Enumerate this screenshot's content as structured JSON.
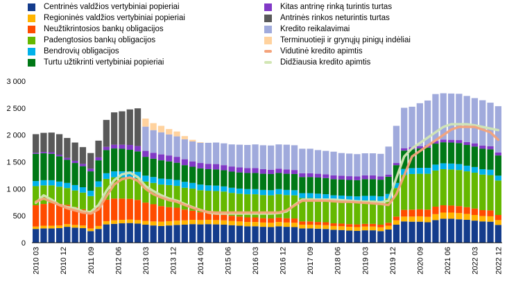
{
  "chart_data": {
    "type": "bar",
    "stacked": true,
    "ylim": [
      0,
      3000
    ],
    "yticks": [
      "0",
      "500",
      "1 000",
      "1 500",
      "2 000",
      "2 500",
      "3 000"
    ],
    "xtick_labels": [
      "2010 03",
      "2010 12",
      "2011 09",
      "2012 06",
      "2013 03",
      "2013 12",
      "2014 09",
      "2015 06",
      "2016 03",
      "2016 12",
      "2017 09",
      "2018 06",
      "2019 03",
      "2019 12",
      "2020 09",
      "2021 06",
      "2022 03",
      "2022 12"
    ],
    "legend_placement": "top",
    "grid": false,
    "series": [
      {
        "name": "Centrinės valdžios vertybiniai popieriai",
        "color": "#143c8c",
        "values": [
          255,
          265,
          265,
          270,
          295,
          280,
          270,
          215,
          255,
          340,
          350,
          360,
          365,
          355,
          335,
          320,
          310,
          320,
          330,
          335,
          345,
          340,
          345,
          340,
          335,
          325,
          315,
          305,
          305,
          295,
          290,
          305,
          295,
          290,
          265,
          265,
          260,
          255,
          240,
          235,
          225,
          220,
          230,
          230,
          215,
          245,
          335,
          395,
          390,
          390,
          380,
          420,
          445,
          445,
          435,
          425,
          410,
          395,
          390,
          330
        ]
      },
      {
        "name": "Regioninės valdžios vertybiniai popieriai",
        "color": "#ffb400",
        "values": [
          45,
          50,
          50,
          50,
          50,
          50,
          50,
          50,
          55,
          60,
          65,
          65,
          65,
          65,
          70,
          75,
          80,
          80,
          80,
          80,
          80,
          80,
          80,
          80,
          80,
          80,
          80,
          80,
          80,
          80,
          80,
          80,
          80,
          80,
          70,
          70,
          70,
          70,
          70,
          70,
          70,
          70,
          70,
          70,
          70,
          70,
          80,
          90,
          95,
          100,
          100,
          110,
          115,
          115,
          115,
          110,
          105,
          100,
          100,
          90
        ]
      },
      {
        "name": "Neužtikrintosios bankų obligacijos",
        "color": "#ff4b00",
        "values": [
          395,
          405,
          420,
          400,
          360,
          330,
          300,
          280,
          350,
          400,
          405,
          395,
          385,
          375,
          340,
          320,
          290,
          260,
          240,
          200,
          170,
          145,
          130,
          120,
          110,
          95,
          90,
          85,
          85,
          80,
          80,
          80,
          80,
          80,
          60,
          60,
          55,
          55,
          50,
          50,
          50,
          50,
          50,
          50,
          50,
          55,
          70,
          125,
          130,
          130,
          135,
          140,
          135,
          130,
          130,
          125,
          120,
          110,
          110,
          95
        ]
      },
      {
        "name": "Padengtosios bankų obligacijos",
        "color": "#65b800",
        "values": [
          355,
          345,
          330,
          320,
          310,
          310,
          310,
          320,
          375,
          385,
          395,
          395,
          400,
          405,
          390,
          395,
          400,
          410,
          405,
          405,
          410,
          410,
          410,
          420,
          425,
          425,
          425,
          430,
          430,
          430,
          430,
          435,
          430,
          430,
          435,
          435,
          435,
          435,
          435,
          435,
          435,
          435,
          435,
          435,
          440,
          450,
          530,
          650,
          660,
          660,
          665,
          670,
          670,
          670,
          670,
          665,
          665,
          660,
          655,
          640
        ]
      },
      {
        "name": "Bendrovių obligacijos",
        "color": "#00b1ea",
        "values": [
          95,
          95,
          95,
          95,
          95,
          100,
          100,
          100,
          105,
          105,
          110,
          110,
          110,
          115,
          110,
          110,
          110,
          110,
          110,
          110,
          105,
          105,
          100,
          100,
          95,
          95,
          95,
          95,
          95,
          95,
          95,
          95,
          95,
          95,
          90,
          90,
          90,
          85,
          85,
          85,
          85,
          85,
          85,
          85,
          85,
          85,
          95,
          110,
          110,
          110,
          110,
          110,
          110,
          110,
          110,
          105,
          105,
          100,
          100,
          90
        ]
      },
      {
        "name": "Turtu užtikrinti vertybiniai popieriai",
        "color": "#007816",
        "values": [
          505,
          500,
          490,
          470,
          430,
          410,
          390,
          360,
          390,
          430,
          425,
          420,
          400,
          380,
          350,
          340,
          340,
          330,
          320,
          310,
          300,
          300,
          300,
          300,
          300,
          300,
          300,
          300,
          300,
          300,
          300,
          300,
          300,
          300,
          300,
          300,
          300,
          300,
          300,
          300,
          300,
          300,
          310,
          310,
          310,
          320,
          330,
          340,
          350,
          360,
          375,
          390,
          390,
          390,
          390,
          385,
          380,
          380,
          380,
          375
        ]
      },
      {
        "name": "Kitas antrinę rinką turintis turtas",
        "color": "#8139c6",
        "values": [
          20,
          25,
          30,
          30,
          35,
          40,
          45,
          50,
          55,
          60,
          70,
          75,
          90,
          100,
          110,
          110,
          110,
          110,
          110,
          110,
          100,
          100,
          100,
          100,
          95,
          95,
          95,
          90,
          90,
          85,
          80,
          80,
          80,
          75,
          70,
          70,
          70,
          70,
          70,
          70,
          70,
          70,
          70,
          70,
          60,
          40,
          40,
          45,
          40,
          40,
          45,
          50,
          50,
          50,
          55,
          55,
          60,
          60,
          55,
          55
        ]
      },
      {
        "name": "Antrinės rinkos neturintis turtas",
        "color": "#595959",
        "values": [
          345,
          355,
          365,
          380,
          370,
          340,
          310,
          290,
          310,
          500,
          600,
          620,
          660,
          700,
          0,
          0,
          0,
          0,
          0,
          0,
          0,
          0,
          0,
          0,
          0,
          0,
          0,
          0,
          0,
          0,
          0,
          0,
          0,
          0,
          0,
          0,
          0,
          0,
          0,
          0,
          0,
          0,
          0,
          0,
          0,
          0,
          0,
          0,
          0,
          0,
          0,
          0,
          0,
          0,
          0,
          0,
          0,
          0,
          0,
          0
        ]
      },
      {
        "name": "Kredito reikalavimai",
        "color": "#a0aadc",
        "values": [
          0,
          0,
          0,
          0,
          0,
          0,
          0,
          0,
          0,
          0,
          0,
          0,
          0,
          0,
          450,
          420,
          410,
          390,
          380,
          370,
          370,
          375,
          390,
          400,
          405,
          410,
          420,
          430,
          440,
          445,
          450,
          450,
          460,
          460,
          455,
          455,
          440,
          435,
          440,
          420,
          420,
          415,
          410,
          410,
          420,
          520,
          690,
          750,
          750,
          800,
          830,
          870,
          860,
          860,
          860,
          855,
          840,
          840,
          810,
          860
        ]
      },
      {
        "name": "Terminuotieji ir grynųjų pinigų indėliai",
        "color": "#ffd29e",
        "values": [
          0,
          0,
          0,
          0,
          0,
          0,
          0,
          0,
          0,
          0,
          0,
          0,
          0,
          0,
          150,
          130,
          120,
          100,
          90,
          60,
          30,
          10,
          0,
          0,
          0,
          0,
          0,
          0,
          0,
          0,
          0,
          0,
          0,
          0,
          0,
          0,
          0,
          0,
          0,
          0,
          0,
          0,
          0,
          0,
          0,
          0,
          0,
          0,
          0,
          0,
          0,
          0,
          0,
          0,
          0,
          0,
          0,
          0,
          0,
          0
        ]
      }
    ],
    "lines": [
      {
        "name": "Vidutinė kredito apimtis",
        "color": "#f4a37a",
        "values": [
          760,
          820,
          760,
          700,
          640,
          600,
          560,
          540,
          620,
          860,
          1080,
          1180,
          1210,
          1150,
          1000,
          900,
          840,
          790,
          760,
          700,
          650,
          600,
          570,
          560,
          560,
          560,
          560,
          560,
          560,
          560,
          560,
          560,
          600,
          690,
          780,
          780,
          780,
          780,
          770,
          760,
          760,
          750,
          740,
          730,
          720,
          700,
          900,
          1250,
          1600,
          1700,
          1800,
          1900,
          2000,
          2100,
          2150,
          2150,
          2150,
          2100,
          2050,
          1910
        ]
      },
      {
        "name": "Didžiausia kredito apimtis",
        "color": "#d2e6b4",
        "values": [
          740,
          880,
          800,
          700,
          660,
          640,
          580,
          570,
          700,
          960,
          1160,
          1270,
          1300,
          1220,
          1050,
          960,
          880,
          820,
          780,
          720,
          660,
          610,
          560,
          540,
          540,
          540,
          540,
          540,
          540,
          540,
          540,
          550,
          580,
          700,
          800,
          800,
          800,
          800,
          800,
          790,
          780,
          770,
          760,
          760,
          750,
          780,
          1200,
          1600,
          1750,
          1850,
          1950,
          2050,
          2150,
          2200,
          2200,
          2200,
          2180,
          2150,
          2120,
          2090
        ]
      }
    ]
  }
}
